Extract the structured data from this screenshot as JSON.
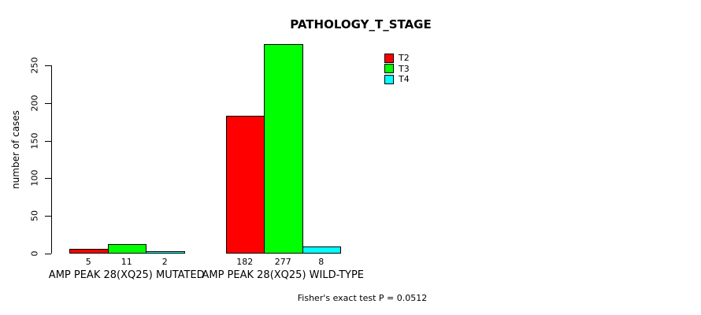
{
  "chart_data": {
    "type": "bar",
    "title": "PATHOLOGY_T_STAGE",
    "xlabel": "",
    "ylabel": "number of cases",
    "categories": [
      "AMP PEAK 28(XQ25) MUTATED",
      "AMP PEAK 28(XQ25) WILD-TYPE"
    ],
    "series": [
      {
        "name": "T2",
        "color": "#FF0000",
        "values": [
          5,
          182
        ]
      },
      {
        "name": "T3",
        "color": "#00FF00",
        "values": [
          11,
          277
        ]
      },
      {
        "name": "T4",
        "color": "#00FFFF",
        "values": [
          2,
          8
        ]
      }
    ],
    "bar_labels": [
      [
        5,
        11,
        2
      ],
      [
        182,
        277,
        8
      ]
    ],
    "yticks": [
      0,
      50,
      100,
      150,
      200,
      250
    ],
    "ylim": [
      0,
      277
    ],
    "grid": false,
    "legend_position": "top-right",
    "legend_entries": [
      "T2",
      "T3",
      "T4"
    ],
    "annotation": "Fisher's exact test P = 0.0512"
  },
  "colors": {
    "t2": "#FF0000",
    "t3": "#00FF00",
    "t4": "#00FFFF",
    "axis": "#000000",
    "background": "#FFFFFF"
  }
}
